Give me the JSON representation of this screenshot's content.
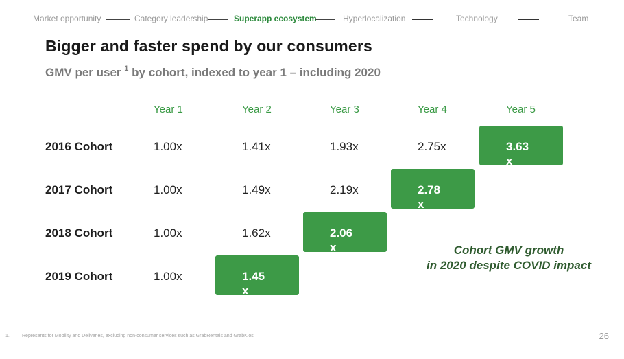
{
  "nav": {
    "tabs": [
      "Market opportunity",
      "Category leadership",
      "Superapp ecosystem",
      "Hyperlocalization",
      "Technology",
      "Team"
    ],
    "active": "Superapp ecosystem"
  },
  "title": "Bigger and faster spend by our consumers",
  "subtitle": {
    "text_a": "GMV per user",
    "superscript": "1",
    "text_b": "by cohort, indexed to year 1 – including 2020"
  },
  "table": {
    "headers": [
      "Year 1",
      "Year 2",
      "Year 3",
      "Year 4",
      "Year 5"
    ],
    "rows": [
      {
        "label": "2016 Cohort",
        "values": [
          "1.00x",
          "1.41x",
          "1.93x",
          "2.75x"
        ],
        "highlight": "3.63x"
      },
      {
        "label": "2017 Cohort",
        "values": [
          "1.00x",
          "1.49x",
          "2.19x"
        ],
        "highlight": "2.78x"
      },
      {
        "label": "2018 Cohort",
        "values": [
          "1.00x",
          "1.62x"
        ],
        "highlight": "2.06x"
      },
      {
        "label": "2019 Cohort",
        "values": [
          "1.00x"
        ],
        "highlight": "1.45x"
      }
    ]
  },
  "callout": {
    "line1": "Cohort GMV growth",
    "line2": "in 2020 despite COVID impact"
  },
  "footnote": {
    "number": "1.",
    "text": "Represents for Mobility and Deliveries, excluding non-consumer services such as GrabRentals and GrabKios"
  },
  "page_number": "26",
  "colors": {
    "accent": "#3d9a47",
    "accent_text": "#2e8b3e",
    "callout": "#2f5b2f"
  }
}
